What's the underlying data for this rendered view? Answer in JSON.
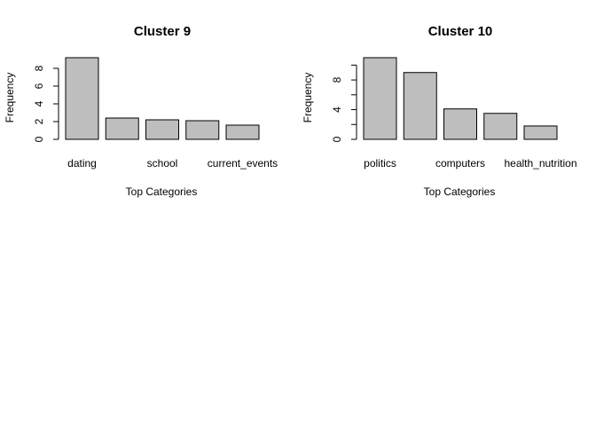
{
  "chart_data": [
    {
      "type": "bar",
      "title": "Cluster 9",
      "xlabel": "Top Categories",
      "ylabel": "Frequency",
      "categories": [
        "dating",
        "",
        "school",
        "",
        "current_events"
      ],
      "values": [
        9.2,
        2.4,
        2.2,
        2.1,
        1.6
      ],
      "ylim": [
        0,
        9.2
      ],
      "yticks": [
        0,
        2,
        4,
        6,
        8
      ],
      "grid": false
    },
    {
      "type": "bar",
      "title": "Cluster 10",
      "xlabel": "Top Categories",
      "ylabel": "Frequency",
      "categories": [
        "politics",
        "",
        "computers",
        "",
        "health_nutrition"
      ],
      "values": [
        11.0,
        9.0,
        4.1,
        3.5,
        1.8
      ],
      "ylim": [
        0,
        11.0
      ],
      "yticks": [
        0,
        4,
        8
      ],
      "ytick_minor": [
        2,
        6,
        10
      ],
      "grid": false
    }
  ]
}
